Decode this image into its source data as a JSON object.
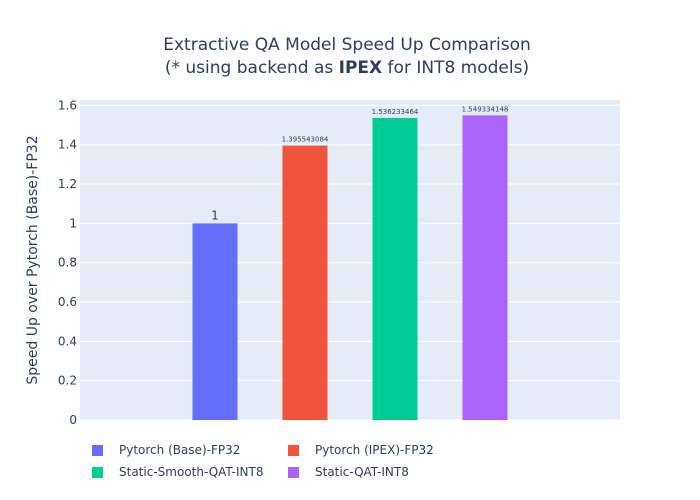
{
  "title_line1": "Extractive QA Model Speed Up Comparison",
  "title_line2_pre": "(* using backend as ",
  "title_line2_bold": "IPEX",
  "title_line2_post": " for INT8 models)",
  "chart_data": {
    "type": "bar",
    "title": "Extractive QA Model Speed Up Comparison (* using backend as IPEX for INT8 models)",
    "xlabel": "",
    "ylabel": "Speed Up over Pytorch (Base)-FP32",
    "ylim": [
      0,
      1.6275
    ],
    "yticks": [
      0,
      0.2,
      0.4,
      0.6,
      0.8,
      1,
      1.2,
      1.4,
      1.6
    ],
    "ytick_labels": [
      "0",
      "0.2",
      "0.4",
      "0.6",
      "0.8",
      "1",
      "1.2",
      "1.4",
      "1.6"
    ],
    "grid": true,
    "legend_position": "bottom",
    "series": [
      {
        "name": "Pytorch (Base)-FP32",
        "values": [
          1
        ],
        "label": "1",
        "color": "#636efa"
      },
      {
        "name": "Pytorch (IPEX)-FP32",
        "values": [
          1.395543084
        ],
        "label": "1.395543084",
        "color": "#ef553b"
      },
      {
        "name": "Static-Smooth-QAT-INT8",
        "values": [
          1.536233464
        ],
        "label": "1.536233464",
        "color": "#00cc96"
      },
      {
        "name": "Static-QAT-INT8",
        "values": [
          1.549334148
        ],
        "label": "1.549334148",
        "color": "#ab63fa"
      }
    ]
  },
  "colors": {
    "plot_bg": "#e5ecf6",
    "grid": "#ffffff",
    "text": "#2a3f5f"
  }
}
